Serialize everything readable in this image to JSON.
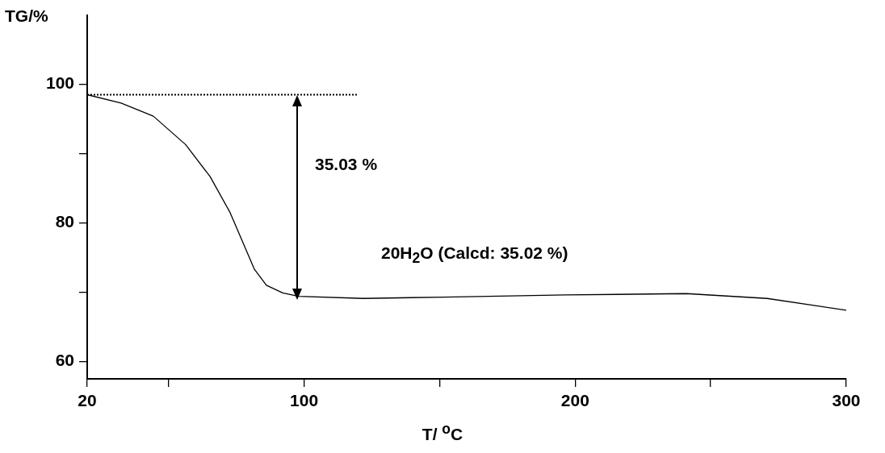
{
  "chart_data": {
    "type": "line",
    "xlabel": "T/ $^{o}$C",
    "ylabel": "TG/%",
    "xlim": [
      20,
      300
    ],
    "xticks": [
      20,
      {
        "value": 50,
        "label": null
      },
      100,
      {
        "value": 150,
        "label": null
      },
      200,
      {
        "value": 250,
        "label": null
      },
      300
    ],
    "ylim": [
      57.5,
      110
    ],
    "yticks": [
      60,
      {
        "value": 70,
        "label": null
      },
      80,
      {
        "value": 90,
        "label": null
      },
      100
    ],
    "grid": false,
    "legend": false,
    "marker": "none",
    "series": [
      {
        "color": "#000000",
        "line_style": "solid",
        "x": [
          20,
          32.5,
          44.4,
          56.3,
          65.3,
          72.7,
          77.2,
          81.7,
          86.1,
          92.1,
          98,
          121.9,
          151.7,
          196.3,
          241,
          270.8,
          300
        ],
        "values": [
          98.5,
          97.3,
          95.4,
          91.3,
          86.7,
          81.5,
          77.4,
          73.3,
          71,
          69.9,
          69.4,
          69.1,
          69.3,
          69.6,
          69.8,
          69.1,
          67.4
        ]
      },
      {
        "color": "#000000",
        "line_style": "dotted",
        "x": [
          20,
          120
        ],
        "values": [
          98.5,
          98.5
        ]
      }
    ],
    "annotations": [
      "35.03 %",
      "20H$_{2}$O (Calcd: 35.02 %)"
    ]
  }
}
